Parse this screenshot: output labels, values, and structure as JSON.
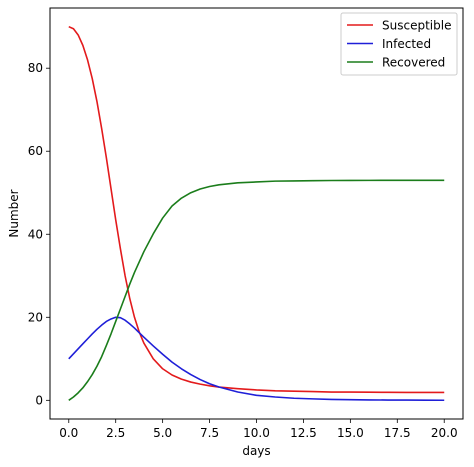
{
  "chart_data": {
    "type": "line",
    "xlabel": "days",
    "ylabel": "Number",
    "xlim": [
      -1,
      21
    ],
    "ylim": [
      -4.5,
      94.5
    ],
    "xticks": [
      0.0,
      2.5,
      5.0,
      7.5,
      10.0,
      12.5,
      15.0,
      17.5,
      20.0
    ],
    "xtick_labels": [
      "0.0",
      "2.5",
      "5.0",
      "7.5",
      "10.0",
      "12.5",
      "15.0",
      "17.5",
      "20.0"
    ],
    "yticks": [
      0,
      20,
      40,
      60,
      80
    ],
    "ytick_labels": [
      "0",
      "20",
      "40",
      "60",
      "80"
    ],
    "grid": false,
    "legend_position": "top-right",
    "x": [
      0,
      0.25,
      0.5,
      0.75,
      1.0,
      1.25,
      1.5,
      1.75,
      2.0,
      2.25,
      2.5,
      2.75,
      3.0,
      3.25,
      3.5,
      3.75,
      4.0,
      4.5,
      5.0,
      5.5,
      6.0,
      6.5,
      7.0,
      7.5,
      8.0,
      9.0,
      10.0,
      11.0,
      12.0,
      13.0,
      14.0,
      15.0,
      16.0,
      17.0,
      18.0,
      19.0,
      20.0
    ],
    "series": [
      {
        "name": "Susceptible",
        "color": "#e31a1c",
        "values": [
          90,
          89.5,
          88,
          85.5,
          82,
          77.5,
          72,
          65.5,
          58.5,
          51,
          43.5,
          36.5,
          30,
          24.5,
          20,
          16.5,
          13.8,
          10,
          7.6,
          6.1,
          5.1,
          4.4,
          3.9,
          3.5,
          3.2,
          2.8,
          2.5,
          2.3,
          2.2,
          2.1,
          2.0,
          2.0,
          1.95,
          1.92,
          1.9,
          1.9,
          1.9
        ]
      },
      {
        "name": "Infected",
        "color": "#1f1fd8",
        "values": [
          10,
          11.2,
          12.4,
          13.6,
          14.8,
          16,
          17.1,
          18.1,
          19,
          19.6,
          20,
          19.9,
          19.3,
          18.4,
          17.4,
          16.3,
          15.2,
          13.1,
          11.1,
          9.2,
          7.6,
          6.2,
          5.0,
          4.0,
          3.2,
          2.0,
          1.2,
          0.8,
          0.5,
          0.35,
          0.22,
          0.15,
          0.1,
          0.07,
          0.05,
          0.03,
          0.02
        ]
      },
      {
        "name": "Recovered",
        "color": "#1b7d1b",
        "values": [
          0,
          0.8,
          1.8,
          3,
          4.5,
          6.2,
          8.2,
          10.5,
          13.2,
          16,
          19,
          22,
          25,
          28,
          30.8,
          33.3,
          35.8,
          40.1,
          43.9,
          46.8,
          48.7,
          50.0,
          50.9,
          51.5,
          51.9,
          52.4,
          52.6,
          52.8,
          52.85,
          52.9,
          52.95,
          52.97,
          52.98,
          52.99,
          53,
          53,
          53
        ]
      }
    ]
  }
}
